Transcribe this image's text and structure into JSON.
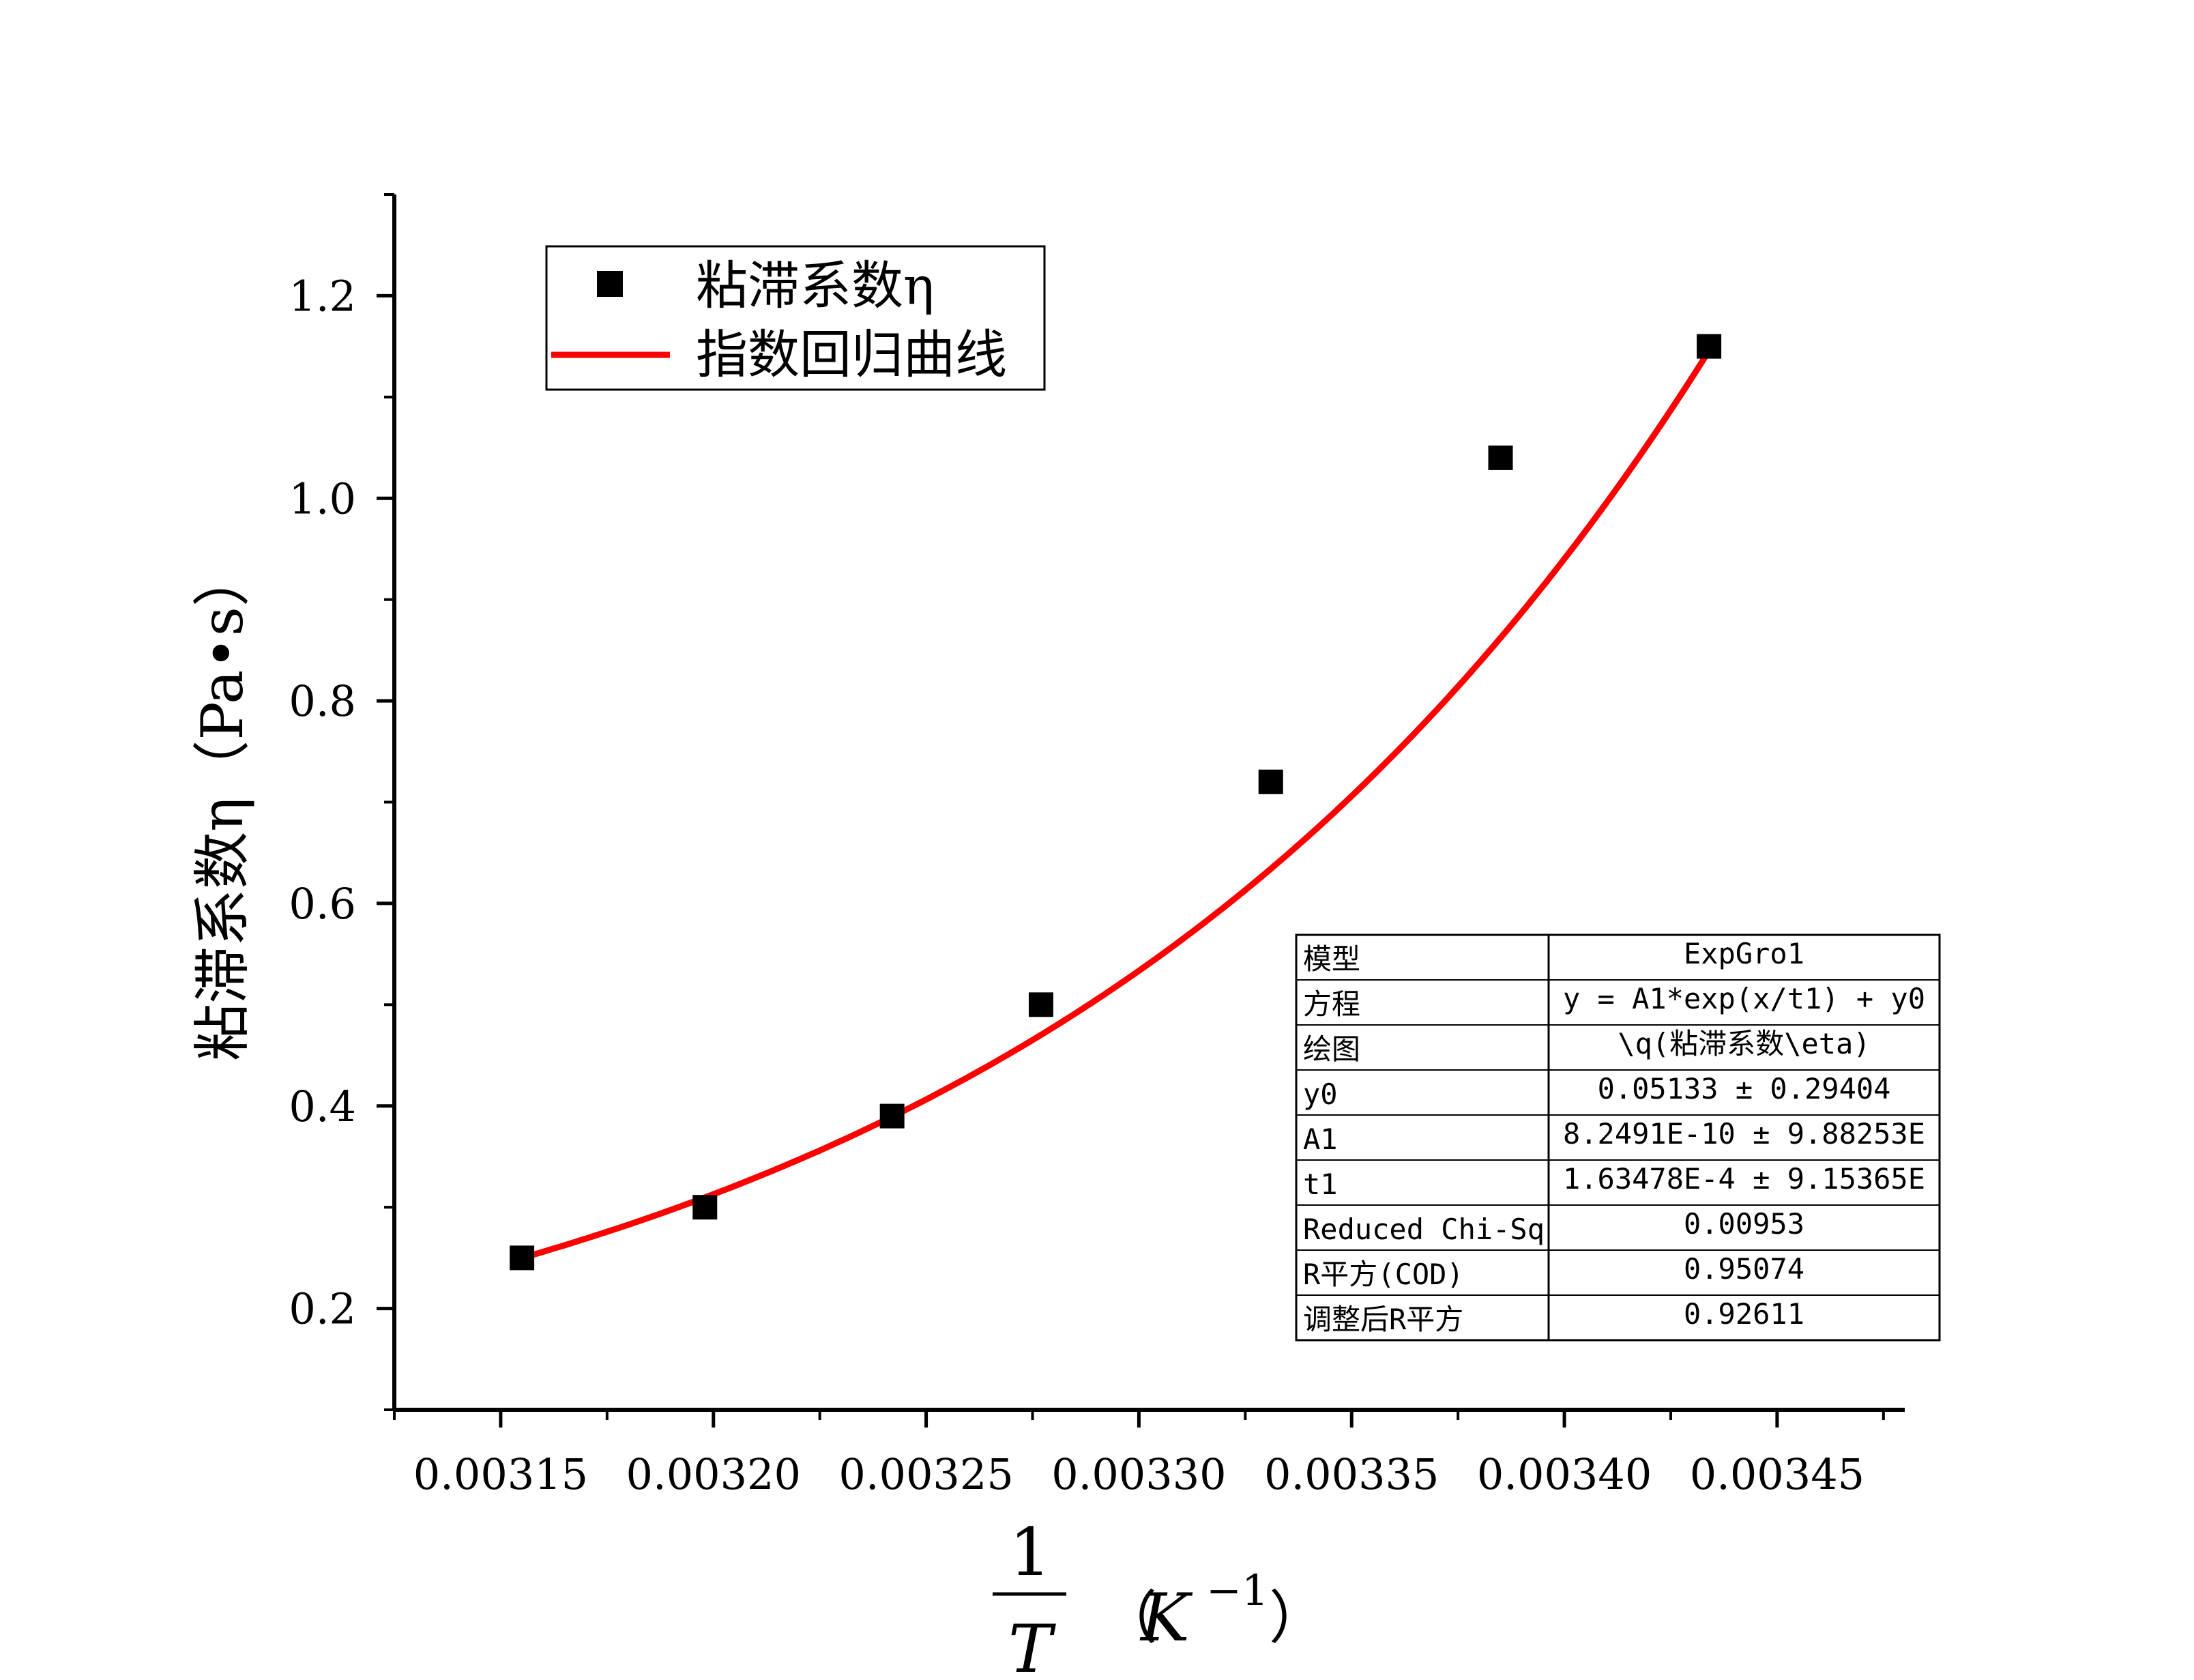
{
  "chart_data": {
    "type": "scatter",
    "title": "",
    "xlabel_num": "1",
    "xlabel_den": "T",
    "xlabel_unit_open": "（",
    "xlabel_unit_base": "K",
    "xlabel_unit_exp": "−1",
    "xlabel_unit_close": "）",
    "ylabel": "粘滞系数η（Pa•s）",
    "xlim": [
      0.003125,
      0.00348
    ],
    "ylim": [
      0.1,
      1.3
    ],
    "x_ticks": [
      0.00315,
      0.0032,
      0.00325,
      0.0033,
      0.00335,
      0.0034,
      0.00345
    ],
    "x_tick_labels": [
      "0.00315",
      "0.00320",
      "0.00325",
      "0.00330",
      "0.00335",
      "0.00340",
      "0.00345"
    ],
    "y_ticks": [
      0.2,
      0.4,
      0.6,
      0.8,
      1.0,
      1.2
    ],
    "y_tick_labels": [
      "0.2",
      "0.4",
      "0.6",
      "0.8",
      "1.0",
      "1.2"
    ],
    "grid": false,
    "legend_position": "top-left",
    "series": [
      {
        "name": "粘滞系数η",
        "kind": "scatter",
        "color": "#000000",
        "x": [
          0.003155,
          0.003198,
          0.003242,
          0.003277,
          0.003331,
          0.003385,
          0.003434
        ],
        "y": [
          0.25,
          0.3,
          0.39,
          0.5,
          0.72,
          1.04,
          1.15
        ]
      },
      {
        "name": "指数回归曲线",
        "kind": "line",
        "color": "#ff0000",
        "x_range": [
          0.003155,
          0.003434
        ],
        "y0": 0.05133,
        "A1": 8.2491e-10,
        "t1": 0.000163478
      }
    ],
    "fit_table": [
      [
        "模型",
        "ExpGro1"
      ],
      [
        "方程",
        "y = A1*exp(x/t1) + y0"
      ],
      [
        "绘图",
        "\\q(粘滞系数\\eta)"
      ],
      [
        "y0",
        "0.05133 ± 0.29404"
      ],
      [
        "A1",
        "8.2491E-10 ± 9.88253E"
      ],
      [
        "t1",
        "1.63478E-4 ± 9.15365E"
      ],
      [
        "Reduced Chi-Sq",
        "0.00953"
      ],
      [
        "R平方(COD)",
        "0.95074"
      ],
      [
        "调整后R平方",
        "0.92611"
      ]
    ]
  }
}
